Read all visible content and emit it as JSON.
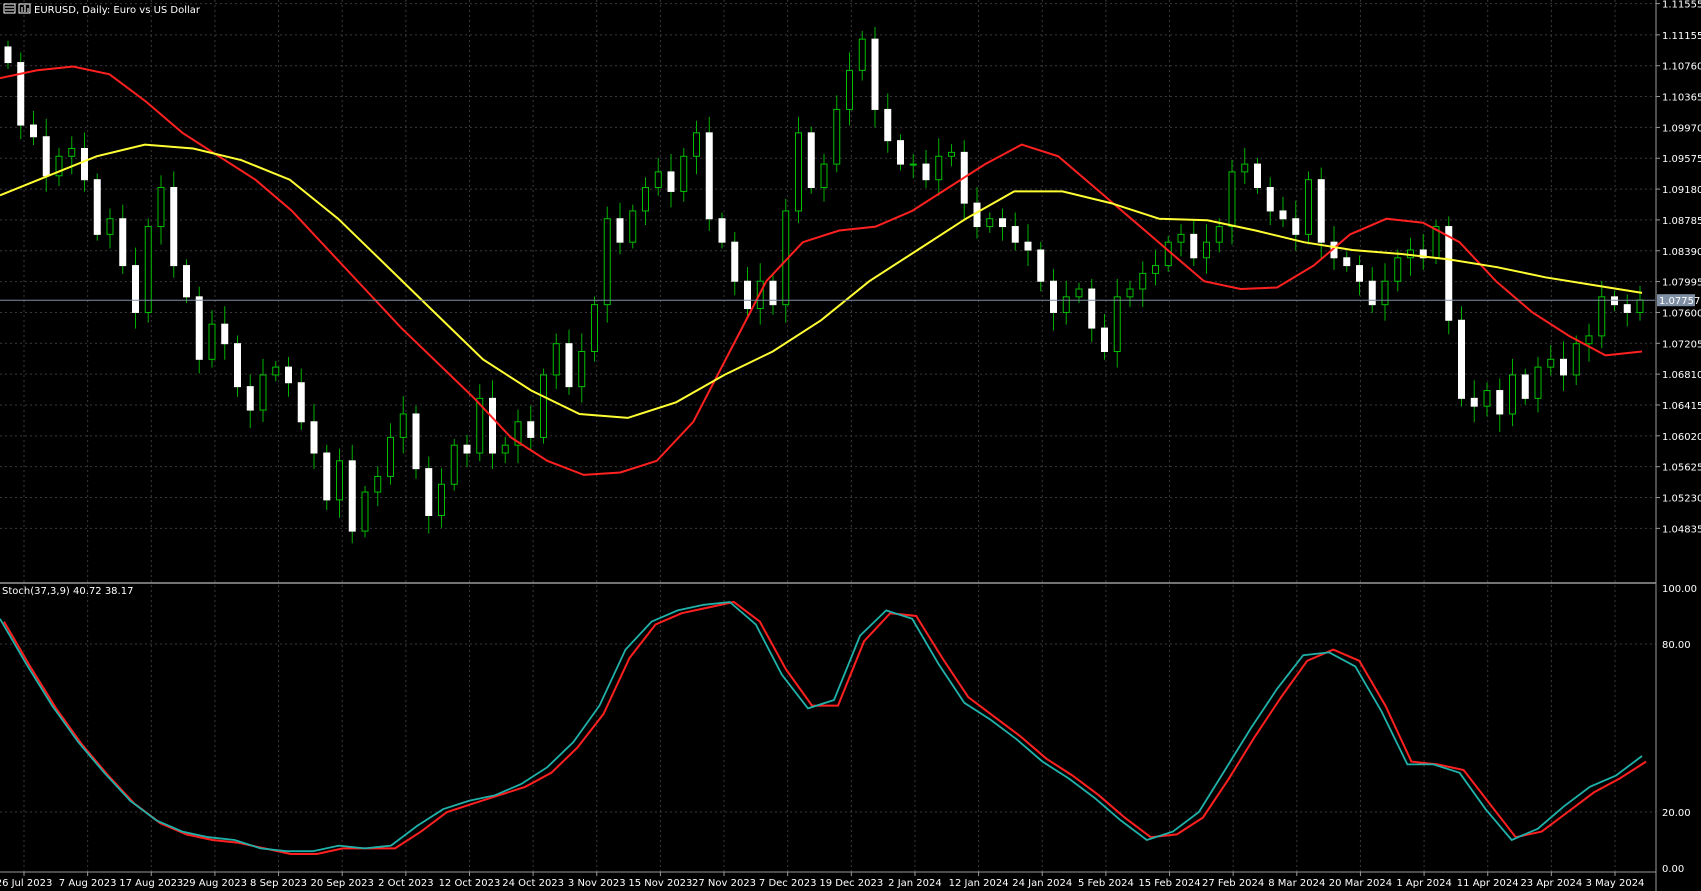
{
  "header": {
    "title": "EURUSD, Daily:  Euro vs US Dollar",
    "stoch_label": "Stoch(37,3,9) 40.72 38.17"
  },
  "colors": {
    "background": "#000000",
    "grid": "#3a3a3a",
    "candle_up": "#000000",
    "candle_up_outline": "#00c000",
    "candle_down": "#ffffff",
    "wick": "#00b000",
    "ma_fast": "#ff2020",
    "ma_slow": "#ffff33",
    "stoch_main": "#20b2aa",
    "stoch_signal": "#ff2020",
    "price_tag": "#7f8fa6",
    "axis_text": "#ffffff"
  },
  "chart_data": [
    {
      "type": "candlestick",
      "title": "EURUSD, Daily:  Euro vs US Dollar",
      "ylim": [
        1.0443,
        1.1155
      ],
      "price_ticks": [
        "1.11555",
        "1.11155",
        "1.10760",
        "1.10365",
        "1.09970",
        "1.09575",
        "1.09180",
        "1.08785",
        "1.08390",
        "1.07995",
        "1.07600",
        "1.07205",
        "1.06810",
        "1.06415",
        "1.06020",
        "1.05625",
        "1.05230",
        "1.04835"
      ],
      "last_price": "1.07757",
      "x_labels": [
        "26 Jul 2023",
        "7 Aug 2023",
        "17 Aug 2023",
        "29 Aug 2023",
        "8 Sep 2023",
        "20 Sep 2023",
        "2 Oct 2023",
        "12 Oct 2023",
        "24 Oct 2023",
        "3 Nov 2023",
        "15 Nov 2023",
        "27 Nov 2023",
        "7 Dec 2023",
        "19 Dec 2023",
        "2 Jan 2024",
        "12 Jan 2024",
        "24 Jan 2024",
        "5 Feb 2024",
        "15 Feb 2024",
        "27 Feb 2024",
        "8 Mar 2024",
        "20 Mar 2024",
        "1 Apr 2024",
        "11 Apr 2024",
        "23 Apr 2024",
        "3 May 2024"
      ],
      "close_path": [
        1.108,
        1.1,
        1.0985,
        1.0935,
        1.096,
        1.097,
        1.093,
        1.086,
        1.088,
        1.082,
        1.076,
        1.087,
        1.092,
        1.082,
        1.078,
        1.07,
        1.0745,
        1.072,
        1.0665,
        1.0635,
        1.068,
        1.069,
        1.067,
        1.062,
        1.058,
        1.052,
        1.057,
        1.048,
        1.053,
        1.055,
        1.06,
        1.063,
        1.056,
        1.05,
        1.054,
        1.059,
        1.058,
        1.065,
        1.058,
        1.059,
        1.062,
        1.06,
        1.068,
        1.072,
        1.0665,
        1.071,
        1.077,
        1.088,
        1.085,
        1.089,
        1.092,
        1.094,
        1.0915,
        1.096,
        1.099,
        1.088,
        1.085,
        1.08,
        1.0765,
        1.08,
        1.077,
        1.089,
        1.099,
        1.092,
        1.095,
        1.102,
        1.107,
        1.111,
        1.102,
        1.098,
        1.095,
        1.095,
        1.093,
        1.096,
        1.0965,
        1.09,
        1.087,
        1.088,
        1.087,
        1.085,
        1.084,
        1.08,
        1.076,
        1.078,
        1.079,
        1.074,
        1.071,
        1.078,
        1.079,
        1.081,
        1.082,
        1.085,
        1.086,
        1.083,
        1.085,
        1.087,
        1.094,
        1.095,
        1.092,
        1.089,
        1.088,
        1.086,
        1.093,
        1.085,
        1.083,
        1.082,
        1.08,
        1.077,
        1.08,
        1.083,
        1.084,
        1.083,
        1.087,
        1.075,
        1.065,
        1.064,
        1.066,
        1.063,
        1.068,
        1.065,
        1.069,
        1.07,
        1.068,
        1.072,
        1.073,
        1.078,
        1.077,
        1.076,
        1.0776
      ],
      "ma_fast_path": [
        1.106,
        1.107,
        1.1075,
        1.1065,
        1.103,
        1.099,
        1.096,
        1.093,
        1.089,
        1.084,
        1.079,
        1.074,
        1.0695,
        1.065,
        1.06,
        1.057,
        1.0552,
        1.0555,
        1.057,
        1.062,
        1.071,
        1.08,
        1.085,
        1.0865,
        1.087,
        1.089,
        1.092,
        1.095,
        1.0975,
        1.096,
        1.092,
        1.088,
        1.084,
        1.08,
        1.079,
        1.0792,
        1.082,
        1.086,
        1.088,
        1.0875,
        1.085,
        1.08,
        1.076,
        1.073,
        1.0705,
        1.071
      ],
      "ma_slow_path": [
        1.091,
        1.0935,
        1.096,
        1.0975,
        1.097,
        1.0955,
        1.093,
        1.088,
        1.082,
        1.076,
        1.07,
        1.066,
        1.063,
        1.0625,
        1.0645,
        1.068,
        1.071,
        1.075,
        1.08,
        1.084,
        1.088,
        1.0915,
        1.0915,
        1.09,
        1.088,
        1.0878,
        1.0865,
        1.085,
        1.084,
        1.0835,
        1.0828,
        1.0818,
        1.0805,
        1.0795,
        1.0785
      ]
    },
    {
      "type": "line",
      "title": "Stoch(37,3,9) 40.72 38.17",
      "ylim": [
        0,
        100
      ],
      "ticks": [
        "100.00",
        "80.00",
        "20.00",
        "0.00"
      ],
      "series": [
        {
          "values": [
            89,
            73,
            58,
            45,
            34,
            24,
            17,
            13,
            11,
            10,
            7,
            6,
            6,
            8,
            7,
            8,
            15,
            21,
            24,
            26,
            30,
            36,
            45,
            58,
            78,
            88,
            92,
            94,
            95,
            87,
            69,
            57,
            60,
            83,
            92,
            89,
            73,
            59,
            53,
            46,
            38,
            32,
            25,
            17,
            10,
            13,
            20,
            35,
            50,
            64,
            76,
            77,
            72,
            56,
            37,
            37,
            34,
            21,
            10,
            14,
            22,
            29,
            33,
            40
          ]
        },
        {
          "values": [
            88,
            72,
            57,
            44,
            33,
            23,
            16,
            12,
            10,
            9,
            7,
            5,
            5,
            7,
            7,
            7,
            13,
            20,
            23,
            26,
            29,
            34,
            43,
            55,
            75,
            87,
            91,
            93,
            95,
            88,
            71,
            58,
            58,
            81,
            91,
            90,
            75,
            61,
            54,
            47,
            39,
            33,
            26,
            18,
            11,
            12,
            18,
            32,
            47,
            61,
            74,
            78,
            74,
            58,
            38,
            37,
            35,
            23,
            11,
            13,
            20,
            27,
            32,
            38
          ]
        }
      ]
    }
  ]
}
